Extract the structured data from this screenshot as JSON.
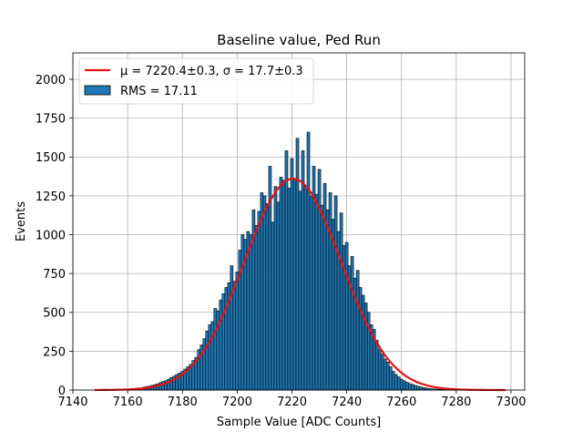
{
  "chart_data": {
    "type": "bar",
    "title": "Baseline value, Ped Run",
    "xlabel": "Sample Value [ADC Counts]",
    "ylabel": "Events",
    "xlim": [
      7140,
      7305
    ],
    "ylim": [
      0,
      2170
    ],
    "xticks": [
      7140,
      7160,
      7180,
      7200,
      7220,
      7240,
      7260,
      7280,
      7300
    ],
    "yticks": [
      0,
      250,
      500,
      750,
      1000,
      1250,
      1500,
      1750,
      2000
    ],
    "grid": true,
    "legend_position": "top-left",
    "bin_width": 1,
    "histogram": {
      "name": "RMS = 17.11",
      "color": "#1f77b4",
      "edgecolor": "#000000",
      "x": [
        7160,
        7161,
        7162,
        7163,
        7164,
        7165,
        7166,
        7167,
        7168,
        7169,
        7170,
        7171,
        7172,
        7173,
        7174,
        7175,
        7176,
        7177,
        7178,
        7179,
        7180,
        7181,
        7182,
        7183,
        7184,
        7185,
        7186,
        7187,
        7188,
        7189,
        7190,
        7191,
        7192,
        7193,
        7194,
        7195,
        7196,
        7197,
        7198,
        7199,
        7200,
        7201,
        7202,
        7203,
        7204,
        7205,
        7206,
        7207,
        7208,
        7209,
        7210,
        7211,
        7212,
        7213,
        7214,
        7215,
        7216,
        7217,
        7218,
        7219,
        7220,
        7221,
        7222,
        7223,
        7224,
        7225,
        7226,
        7227,
        7228,
        7229,
        7230,
        7231,
        7232,
        7233,
        7234,
        7235,
        7236,
        7237,
        7238,
        7239,
        7240,
        7241,
        7242,
        7243,
        7244,
        7245,
        7246,
        7247,
        7248,
        7249,
        7250,
        7251,
        7252,
        7253,
        7254,
        7255,
        7256,
        7257,
        7258,
        7259,
        7260,
        7261,
        7262,
        7263,
        7264,
        7265,
        7266,
        7267,
        7268,
        7269,
        7270,
        7271,
        7272,
        7273,
        7274,
        7275,
        7276,
        7277,
        7278,
        7279,
        7280
      ],
      "values": [
        4,
        6,
        8,
        10,
        14,
        12,
        18,
        22,
        25,
        30,
        35,
        40,
        48,
        55,
        60,
        70,
        80,
        90,
        100,
        110,
        120,
        135,
        150,
        165,
        190,
        210,
        260,
        290,
        330,
        380,
        420,
        440,
        525,
        510,
        580,
        620,
        660,
        690,
        800,
        700,
        760,
        900,
        1000,
        970,
        1020,
        1000,
        1160,
        1060,
        1150,
        1270,
        1250,
        1200,
        1440,
        1080,
        1310,
        1210,
        1370,
        1350,
        1540,
        1300,
        1490,
        1360,
        1620,
        1280,
        1540,
        1310,
        1660,
        1250,
        1440,
        1260,
        1420,
        1190,
        1330,
        1160,
        1270,
        1100,
        1250,
        1020,
        1140,
        930,
        950,
        800,
        860,
        720,
        770,
        660,
        610,
        560,
        500,
        420,
        390,
        320,
        260,
        230,
        200,
        180,
        150,
        120,
        100,
        85,
        70,
        60,
        50,
        42,
        36,
        30,
        25,
        20,
        16,
        13,
        10,
        8,
        7,
        6,
        5,
        4,
        3,
        3,
        2,
        2,
        2
      ]
    },
    "fit": {
      "name": "μ = 7220.4±0.3, σ = 17.7±0.3",
      "color": "#e8110f",
      "mu": 7220.4,
      "sigma": 17.7,
      "amplitude": 1360,
      "x_range": [
        7148,
        7298
      ]
    },
    "legend": {
      "fit_label": "μ = 7220.4±0.3, σ = 17.7±0.3",
      "hist_label": "RMS = 17.11"
    }
  }
}
